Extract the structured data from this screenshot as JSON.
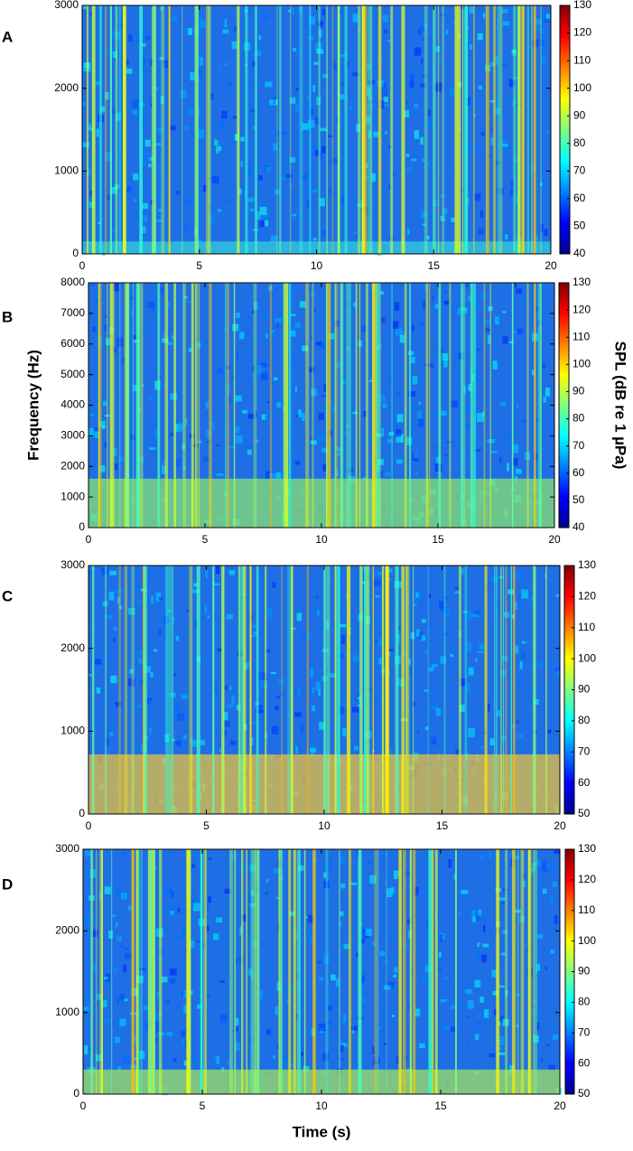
{
  "chart_data": [
    {
      "type": "heatmap",
      "label": "A",
      "xlim": [
        0,
        20
      ],
      "xticks": [
        0,
        5,
        10,
        15,
        20
      ],
      "ylim": [
        0,
        3000
      ],
      "yticks": [
        0,
        1000,
        2000,
        3000
      ],
      "clim": [
        40,
        130
      ],
      "cticks": [
        40,
        50,
        60,
        70,
        80,
        90,
        100,
        110,
        120,
        130
      ]
    },
    {
      "type": "heatmap",
      "label": "B",
      "ylabel": "Frequency (Hz)",
      "colorbar_label": "SPL (dB re 1 µPa)",
      "xlim": [
        0,
        20
      ],
      "xticks": [
        0,
        5,
        10,
        15,
        20
      ],
      "ylim": [
        0,
        8000
      ],
      "yticks": [
        0,
        1000,
        2000,
        3000,
        4000,
        5000,
        6000,
        7000,
        8000
      ],
      "clim": [
        40,
        130
      ],
      "cticks": [
        40,
        50,
        60,
        70,
        80,
        90,
        100,
        110,
        120,
        130
      ]
    },
    {
      "type": "heatmap",
      "label": "C",
      "xlim": [
        0,
        20
      ],
      "xticks": [
        0,
        5,
        10,
        15,
        20
      ],
      "ylim": [
        0,
        3000
      ],
      "yticks": [
        0,
        1000,
        2000,
        3000
      ],
      "clim": [
        50,
        130
      ],
      "cticks": [
        50,
        60,
        70,
        80,
        90,
        100,
        110,
        120,
        130
      ]
    },
    {
      "type": "heatmap",
      "label": "D",
      "xlabel": "Time (s)",
      "xlim": [
        0,
        20
      ],
      "xticks": [
        0,
        5,
        10,
        15,
        20
      ],
      "ylim": [
        0,
        3000
      ],
      "yticks": [
        0,
        1000,
        2000,
        3000
      ],
      "clim": [
        50,
        130
      ],
      "cticks": [
        50,
        60,
        70,
        80,
        90,
        100,
        110,
        120,
        130
      ]
    }
  ]
}
